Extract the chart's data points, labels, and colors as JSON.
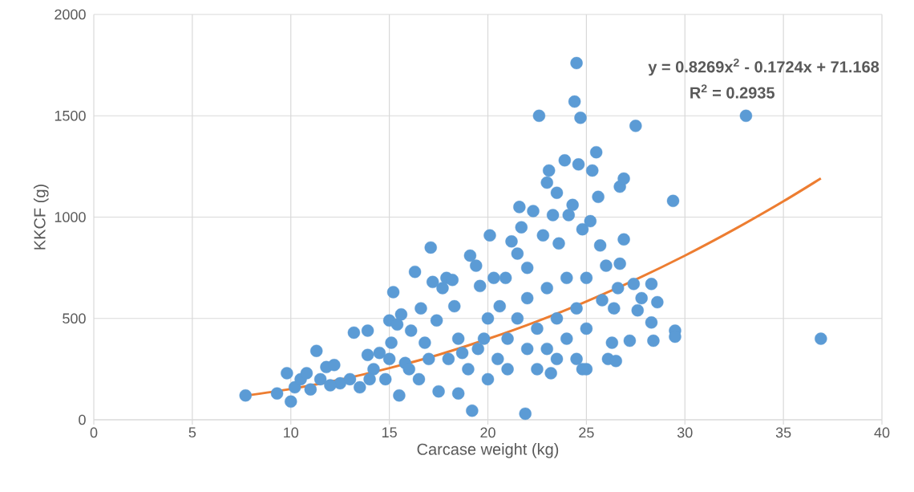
{
  "chart_data": {
    "type": "scatter",
    "xlabel": "Carcase weight (kg)",
    "ylabel": "KKCF (g)",
    "xlim": [
      0,
      40
    ],
    "xticks": [
      0,
      5,
      10,
      15,
      20,
      25,
      30,
      35,
      40
    ],
    "ylim": [
      0,
      2000
    ],
    "yticks": [
      0,
      500,
      1000,
      1500,
      2000
    ],
    "grid": true,
    "annotations": [
      "**y = 0.8269x$^{2}$ - 0.1724x + 71.168**",
      "**R$^{2}$ = 0.2935**"
    ],
    "series": [
      {
        "color": "#5b9bd5",
        "marker": "circle",
        "x": [
          7.7,
          9.3,
          9.8,
          10.0,
          10.2,
          10.5,
          10.8,
          11.3,
          11.5,
          11.8,
          12.2,
          12.5,
          13.2,
          13.5,
          13.9,
          13.9,
          14.2,
          14.5,
          14.8,
          15.0,
          15.1,
          15.2,
          15.4,
          15.5,
          15.6,
          15.8,
          16.1,
          16.3,
          16.6,
          16.8,
          17.1,
          17.2,
          17.4,
          17.5,
          17.7,
          17.9,
          18.2,
          18.3,
          18.5,
          18.7,
          19.1,
          19.2,
          19.4,
          19.6,
          19.8,
          20.1,
          20.3,
          20.6,
          20.9,
          21.2,
          21.5,
          21.6,
          21.7,
          21.9,
          22.0,
          22.3,
          22.6,
          22.8,
          23.0,
          23.1,
          23.3,
          23.5,
          23.6,
          23.9,
          24.1,
          24.3,
          24.4,
          24.5,
          24.6,
          24.7,
          24.8,
          25.0,
          25.2,
          25.3,
          25.5,
          25.6,
          25.7,
          25.8,
          26.0,
          26.1,
          26.3,
          26.4,
          26.5,
          26.6,
          26.7,
          26.9,
          26.7,
          26.9,
          27.2,
          27.4,
          27.5,
          27.6,
          27.8,
          28.3,
          28.3,
          28.4,
          28.6,
          29.4,
          29.5,
          29.5,
          33.1,
          36.9,
          18.0,
          18.5,
          19.0,
          19.5,
          20.0,
          20.0,
          20.5,
          21.0,
          21.0,
          21.5,
          22.0,
          22.0,
          22.5,
          22.5,
          23.0,
          23.0,
          23.5,
          23.5,
          24.0,
          24.0,
          24.5,
          24.5,
          25.0,
          25.0,
          24.8,
          23.2,
          16.5,
          17.0,
          16.0,
          14.0,
          13.0,
          12.0,
          11.0,
          15.0
        ],
        "values": [
          120,
          130,
          230,
          90,
          160,
          200,
          230,
          340,
          200,
          260,
          270,
          180,
          430,
          160,
          440,
          320,
          250,
          330,
          200,
          490,
          380,
          630,
          470,
          120,
          520,
          280,
          440,
          730,
          550,
          380,
          850,
          680,
          490,
          140,
          650,
          700,
          690,
          560,
          130,
          330,
          810,
          45,
          760,
          660,
          400,
          910,
          700,
          560,
          700,
          880,
          820,
          1050,
          950,
          30,
          750,
          1030,
          1500,
          910,
          1170,
          1230,
          1010,
          1120,
          870,
          1280,
          1010,
          1060,
          1570,
          1760,
          1260,
          1490,
          940,
          700,
          980,
          1230,
          1320,
          1100,
          860,
          590,
          760,
          300,
          380,
          550,
          290,
          650,
          770,
          890,
          1150,
          1190,
          390,
          670,
          1450,
          540,
          600,
          670,
          480,
          390,
          580,
          1080,
          440,
          410,
          1500,
          400,
          300,
          400,
          250,
          350,
          200,
          500,
          300,
          400,
          250,
          500,
          350,
          600,
          250,
          450,
          350,
          650,
          300,
          500,
          400,
          700,
          300,
          550,
          250,
          450,
          250,
          230,
          200,
          300,
          250,
          200,
          200,
          170,
          150,
          300
        ]
      },
      {
        "type": "line",
        "color": "#ed7d31",
        "marker": "none",
        "x": [
          7.7,
          10,
          12.5,
          15,
          17.5,
          20,
          22.5,
          25,
          27.5,
          30,
          32.5,
          35,
          36.9
        ],
        "values": [
          119,
          152,
          198,
          255,
          321,
          399,
          486,
          584,
          692,
          810,
          939,
          1078,
          1191
        ]
      }
    ]
  }
}
